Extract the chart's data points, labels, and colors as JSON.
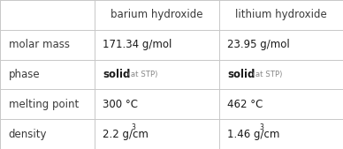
{
  "col_headers": [
    "",
    "barium hydroxide",
    "lithium hydroxide"
  ],
  "rows": [
    {
      "label": "molar mass",
      "col1": "171.34 g/mol",
      "col2": "23.95 g/mol",
      "type": "plain"
    },
    {
      "label": "phase",
      "col1_main": "solid",
      "col1_sub": "  (at STP)",
      "col2_main": "solid",
      "col2_sub": "  (at STP)",
      "type": "phase"
    },
    {
      "label": "melting point",
      "col1": "300 °C",
      "col2": "462 °C",
      "type": "plain"
    },
    {
      "label": "density",
      "col1_main": "2.2 g/cm",
      "col1_sup": "3",
      "col2_main": "1.46 g/cm",
      "col2_sup": "3",
      "type": "density"
    }
  ],
  "background_color": "#ffffff",
  "line_color": "#c8c8c8",
  "header_text_color": "#3a3a3a",
  "label_text_color": "#3a3a3a",
  "data_text_color": "#1a1a1a",
  "sub_text_color": "#888888",
  "header_font_size": 8.5,
  "label_font_size": 8.5,
  "data_font_size": 8.5,
  "phase_main_font_size": 8.5,
  "phase_sub_font_size": 6.2,
  "sup_font_size": 5.5,
  "col_bounds": [
    0.0,
    0.275,
    0.638,
    1.0
  ],
  "n_rows": 5
}
